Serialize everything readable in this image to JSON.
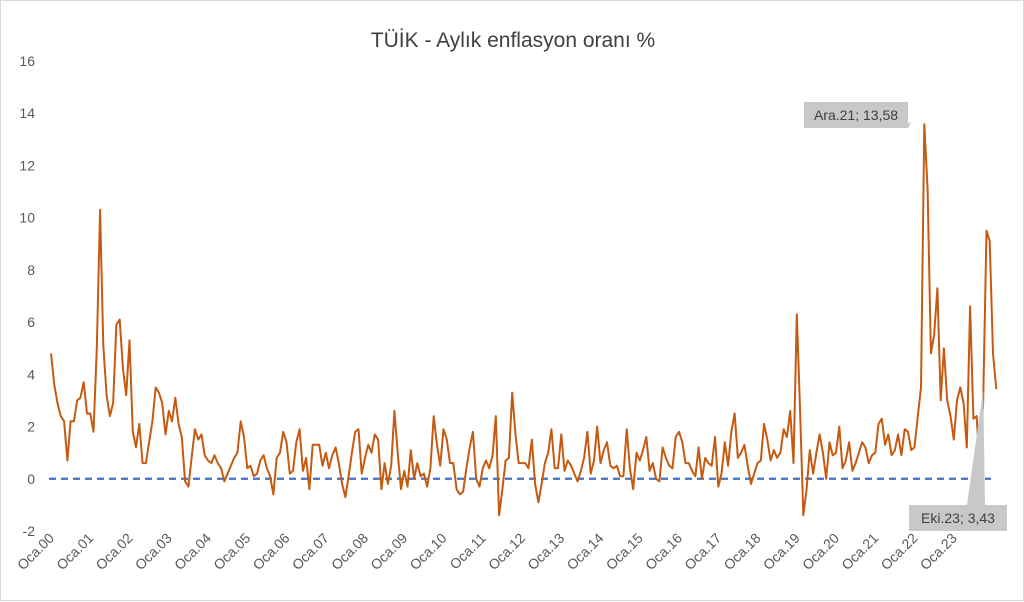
{
  "chart_data": {
    "type": "line",
    "title": "TÜİK - Aylık enflasyon oranı %",
    "xlabel": "",
    "ylabel": "",
    "ylim": [
      -2,
      16
    ],
    "yticks": [
      -2,
      0,
      2,
      4,
      6,
      8,
      10,
      12,
      14,
      16
    ],
    "grid": false,
    "x_tick_labels": [
      "Oca.00",
      "Oca.01",
      "Oca.02",
      "Oca.03",
      "Oca.04",
      "Oca.05",
      "Oca.06",
      "Oca.07",
      "Oca.08",
      "Oca.09",
      "Oca.10",
      "Oca.11",
      "Oca.12",
      "Oca.13",
      "Oca.14",
      "Oca.15",
      "Oca.16",
      "Oca.17",
      "Oca.18",
      "Oca.19",
      "Oca.20",
      "Oca.21",
      "Oca.22",
      "Oca.23"
    ],
    "x_start": "Oca.00",
    "reference_line": {
      "value": 0,
      "style": "dashed",
      "color": "#4472c4"
    },
    "series": [
      {
        "color": "#c55a11",
        "values": [
          4.8,
          3.6,
          2.9,
          2.4,
          2.2,
          0.7,
          2.2,
          2.2,
          3.0,
          3.1,
          3.7,
          2.5,
          2.5,
          1.8,
          5.0,
          10.3,
          5.1,
          3.2,
          2.4,
          2.9,
          5.9,
          6.1,
          4.2,
          3.2,
          5.3,
          1.8,
          1.2,
          2.1,
          0.6,
          0.6,
          1.4,
          2.2,
          3.5,
          3.3,
          2.9,
          1.7,
          2.6,
          2.2,
          3.1,
          2.1,
          1.6,
          -0.1,
          -0.3,
          0.8,
          1.9,
          1.5,
          1.7,
          0.9,
          0.7,
          0.6,
          0.9,
          0.6,
          0.4,
          -0.1,
          0.2,
          0.5,
          0.8,
          1.0,
          2.2,
          1.6,
          0.4,
          0.5,
          0.1,
          0.2,
          0.7,
          0.9,
          0.4,
          0.1,
          -0.6,
          0.8,
          1.0,
          1.8,
          1.4,
          0.2,
          0.3,
          1.4,
          1.9,
          0.3,
          0.8,
          -0.4,
          1.3,
          1.3,
          1.3,
          0.5,
          1.0,
          0.4,
          0.9,
          1.2,
          0.6,
          -0.2,
          -0.7,
          0.1,
          1.0,
          1.8,
          1.9,
          0.2,
          0.8,
          1.3,
          1.0,
          1.7,
          1.5,
          -0.4,
          0.6,
          -0.2,
          0.5,
          2.6,
          1.0,
          -0.4,
          0.3,
          -0.3,
          1.1,
          0.0,
          0.6,
          0.1,
          0.2,
          -0.3,
          0.4,
          2.4,
          1.3,
          0.5,
          1.9,
          1.5,
          0.6,
          0.6,
          -0.4,
          -0.6,
          -0.5,
          0.4,
          1.2,
          1.8,
          0.0,
          -0.3,
          0.4,
          0.7,
          0.4,
          0.9,
          2.4,
          -1.4,
          -0.4,
          0.7,
          0.8,
          3.3,
          1.7,
          0.6,
          0.6,
          0.6,
          0.4,
          1.5,
          -0.2,
          -0.9,
          -0.2,
          0.6,
          1.0,
          1.9,
          0.4,
          0.4,
          1.7,
          0.3,
          0.7,
          0.5,
          0.2,
          -0.1,
          0.3,
          0.8,
          1.8,
          0.2,
          0.7,
          2.0,
          0.6,
          1.1,
          1.4,
          0.5,
          0.4,
          0.5,
          0.1,
          0.1,
          1.9,
          0.4,
          -0.4,
          1.0,
          0.7,
          1.1,
          1.6,
          0.3,
          0.6,
          0.0,
          -0.1,
          1.2,
          0.8,
          0.5,
          0.4,
          1.6,
          1.8,
          1.4,
          0.6,
          0.6,
          0.3,
          0.1,
          1.2,
          0.0,
          0.8,
          0.6,
          0.5,
          1.6,
          -0.3,
          0.2,
          1.4,
          0.5,
          1.8,
          2.5,
          0.8,
          1.0,
          1.3,
          0.5,
          -0.2,
          0.2,
          0.6,
          0.7,
          2.1,
          1.5,
          0.7,
          1.1,
          0.8,
          1.0,
          1.9,
          1.6,
          2.6,
          0.6,
          6.3,
          2.7,
          -1.4,
          -0.4,
          1.1,
          0.2,
          1.0,
          1.7,
          1.0,
          0.0,
          1.4,
          0.9,
          1.0,
          2.0,
          0.4,
          0.7,
          1.4,
          0.3,
          0.6,
          1.0,
          1.4,
          1.2,
          0.6,
          0.9,
          1.0,
          2.1,
          2.3,
          1.3,
          1.7,
          0.9,
          1.1,
          1.7,
          0.9,
          1.9,
          1.8,
          1.1,
          1.2,
          2.4,
          3.5,
          13.58,
          11.1,
          4.8,
          5.5,
          7.3,
          3.0,
          5.0,
          3.0,
          2.4,
          1.5,
          3.0,
          3.5,
          2.9,
          1.2,
          6.6,
          2.3,
          2.4,
          0.4,
          3.0,
          9.5,
          9.1,
          4.8,
          3.43
        ]
      }
    ],
    "annotations": [
      {
        "label": "Ara.21; 13,58",
        "value": 13.58,
        "month_index": 263
      },
      {
        "label": "Eki.23; 3,43",
        "value": 3.43,
        "month_index": 285
      }
    ]
  }
}
